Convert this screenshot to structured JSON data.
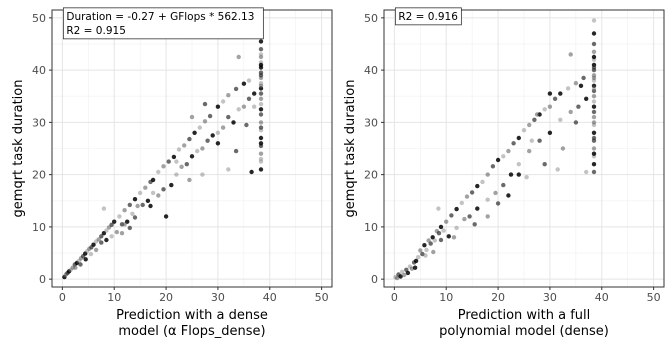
{
  "chart_data": [
    {
      "type": "scatter",
      "xlabel_lines": [
        "Prediction with a dense",
        "model (α Flops_dense)"
      ],
      "ylabel": "gemqrt task duration",
      "xlim": [
        -2,
        52
      ],
      "ylim": [
        -1.5,
        51.5
      ],
      "x_ticks": [
        0,
        10,
        20,
        30,
        40,
        50
      ],
      "y_ticks": [
        0,
        10,
        20,
        30,
        40,
        50
      ],
      "grid": true,
      "annotation_lines": [
        "Duration =  -0.27  + GFlops *  562.13",
        "R2 =  0.915"
      ],
      "points": [
        [
          0.4,
          0.4
        ],
        [
          0.6,
          0.8
        ],
        [
          0.8,
          1.0
        ],
        [
          1.0,
          1.2
        ],
        [
          1.3,
          1.5
        ],
        [
          1.6,
          1.8
        ],
        [
          2.0,
          2.2
        ],
        [
          2.4,
          2.8
        ],
        [
          2.8,
          3.1
        ],
        [
          3.2,
          3.5
        ],
        [
          3.6,
          4.0
        ],
        [
          4.0,
          4.4
        ],
        [
          4.4,
          4.9
        ],
        [
          4.8,
          5.4
        ],
        [
          5.2,
          5.8
        ],
        [
          5.6,
          6.1
        ],
        [
          6.0,
          6.6
        ],
        [
          6.5,
          7.2
        ],
        [
          7.0,
          7.6
        ],
        [
          7.5,
          8.2
        ],
        [
          8.0,
          8.8
        ],
        [
          8.5,
          9.3
        ],
        [
          9.0,
          9.9
        ],
        [
          9.5,
          10.4
        ],
        [
          10.0,
          11.0
        ],
        [
          11.0,
          12.0
        ],
        [
          12.0,
          13.2
        ],
        [
          13.0,
          14.2
        ],
        [
          14.0,
          15.3
        ],
        [
          15.0,
          16.5
        ],
        [
          16.0,
          17.5
        ],
        [
          17.0,
          18.6
        ],
        [
          17.5,
          19.0
        ],
        [
          18.5,
          20.5
        ],
        [
          19.5,
          21.6
        ],
        [
          20.5,
          22.5
        ],
        [
          21.5,
          23.4
        ],
        [
          22.5,
          24.8
        ],
        [
          23.5,
          25.6
        ],
        [
          24.5,
          26.8
        ],
        [
          25.5,
          28.0
        ],
        [
          26.5,
          29.0
        ],
        [
          27.5,
          30.2
        ],
        [
          28.5,
          31.2
        ],
        [
          30.0,
          33.0
        ],
        [
          31.0,
          34.0
        ],
        [
          32.0,
          35.2
        ],
        [
          33.5,
          36.4
        ],
        [
          35.0,
          37.4
        ],
        [
          36.0,
          38.0
        ],
        [
          2.5,
          2.2
        ],
        [
          3.5,
          2.8
        ],
        [
          4.5,
          3.8
        ],
        [
          5.5,
          4.8
        ],
        [
          6.5,
          5.6
        ],
        [
          7.5,
          7.0
        ],
        [
          8.5,
          7.5
        ],
        [
          9.5,
          8.2
        ],
        [
          10.5,
          9.0
        ],
        [
          11.5,
          10.5
        ],
        [
          12.5,
          11.0
        ],
        [
          13.5,
          12.5
        ],
        [
          14.5,
          14.0
        ],
        [
          15.5,
          14.2
        ],
        [
          16.5,
          15.0
        ],
        [
          17.5,
          16.5
        ],
        [
          18.5,
          16.0
        ],
        [
          19.5,
          17.2
        ],
        [
          21.0,
          18.0
        ],
        [
          22.0,
          20.0
        ],
        [
          23.0,
          21.5
        ],
        [
          24.0,
          22.0
        ],
        [
          25.0,
          23.5
        ],
        [
          26.0,
          24.5
        ],
        [
          27.0,
          25.0
        ],
        [
          28.0,
          26.5
        ],
        [
          29.0,
          27.5
        ],
        [
          30.0,
          28.0
        ],
        [
          31.0,
          29.0
        ],
        [
          32.0,
          31.0
        ],
        [
          33.0,
          30.0
        ],
        [
          34.0,
          32.5
        ],
        [
          35.0,
          33.0
        ],
        [
          36.0,
          34.5
        ],
        [
          37.0,
          35.5
        ],
        [
          8.0,
          13.5
        ],
        [
          12.0,
          10.5
        ],
        [
          14.0,
          11.8
        ],
        [
          20.0,
          12.0
        ],
        [
          22.0,
          22.5
        ],
        [
          25.0,
          31.0
        ],
        [
          27.5,
          33.5
        ],
        [
          30.0,
          26.0
        ],
        [
          32.0,
          21.0
        ],
        [
          34.0,
          42.5
        ],
        [
          35.5,
          29.5
        ],
        [
          36.5,
          20.5
        ],
        [
          37.0,
          33.0
        ],
        [
          11.5,
          8.8
        ],
        [
          13.0,
          9.8
        ],
        [
          17.0,
          14.0
        ],
        [
          27.0,
          20.0
        ],
        [
          24.5,
          19.0
        ],
        [
          33.5,
          24.5
        ],
        [
          38.3,
          21.0
        ],
        [
          38.3,
          22.5
        ],
        [
          38.3,
          24.0
        ],
        [
          38.3,
          25.5
        ],
        [
          38.3,
          27.0
        ],
        [
          38.3,
          28.5
        ],
        [
          38.3,
          30.0
        ],
        [
          38.3,
          31.5
        ],
        [
          38.3,
          32.5
        ],
        [
          38.3,
          33.5
        ],
        [
          38.3,
          34.5
        ],
        [
          38.3,
          35.5
        ],
        [
          38.3,
          36.5
        ],
        [
          38.3,
          37.5
        ],
        [
          38.3,
          38.5
        ],
        [
          38.3,
          39.5
        ],
        [
          38.3,
          40.5
        ],
        [
          38.3,
          41.5
        ],
        [
          38.3,
          42.5
        ],
        [
          38.3,
          44.0
        ],
        [
          38.3,
          45.5
        ],
        [
          38.3,
          47.0
        ],
        [
          38.3,
          49.0
        ],
        [
          38.3,
          29.0
        ],
        [
          38.3,
          26.0
        ],
        [
          38.3,
          23.0
        ],
        [
          38.3,
          37.0
        ],
        [
          38.3,
          39.0
        ],
        [
          38.3,
          41.0
        ],
        [
          38.3,
          43.0
        ]
      ]
    },
    {
      "type": "scatter",
      "xlabel_lines": [
        "Prediction with a full",
        "polynomial model (dense)"
      ],
      "ylabel": "gemqrt task duration",
      "xlim": [
        -2,
        52
      ],
      "ylim": [
        -1.5,
        51.5
      ],
      "x_ticks": [
        0,
        10,
        20,
        30,
        40,
        50
      ],
      "y_ticks": [
        0,
        10,
        20,
        30,
        40,
        50
      ],
      "grid": true,
      "annotation_lines": [
        "R2 =  0.916"
      ],
      "points": [
        [
          0.2,
          0.4
        ],
        [
          0.5,
          0.2
        ],
        [
          0.8,
          0.9
        ],
        [
          1.2,
          0.5
        ],
        [
          1.5,
          1.4
        ],
        [
          1.9,
          0.8
        ],
        [
          2.3,
          1.8
        ],
        [
          2.6,
          1.2
        ],
        [
          3.0,
          2.4
        ],
        [
          3.4,
          2.0
        ],
        [
          3.8,
          3.2
        ],
        [
          4.2,
          3.5
        ],
        [
          4.6,
          4.2
        ],
        [
          5.0,
          5.5
        ],
        [
          5.4,
          4.8
        ],
        [
          5.8,
          6.5
        ],
        [
          6.2,
          5.6
        ],
        [
          6.6,
          7.4
        ],
        [
          7.0,
          6.8
        ],
        [
          7.4,
          8.0
        ],
        [
          7.8,
          7.4
        ],
        [
          8.2,
          9.2
        ],
        [
          8.6,
          8.8
        ],
        [
          9.0,
          10.0
        ],
        [
          9.5,
          9.3
        ],
        [
          10.0,
          11.0
        ],
        [
          11.0,
          12.2
        ],
        [
          12.0,
          13.4
        ],
        [
          13.0,
          14.6
        ],
        [
          14.0,
          15.8
        ],
        [
          15.0,
          16.6
        ],
        [
          16.0,
          17.8
        ],
        [
          17.0,
          18.6
        ],
        [
          18.0,
          20.0
        ],
        [
          19.0,
          21.6
        ],
        [
          20.0,
          22.8
        ],
        [
          21.0,
          23.5
        ],
        [
          22.0,
          24.5
        ],
        [
          23.0,
          26.0
        ],
        [
          24.0,
          27.0
        ],
        [
          25.0,
          28.5
        ],
        [
          26.0,
          29.5
        ],
        [
          27.0,
          30.5
        ],
        [
          28.0,
          31.5
        ],
        [
          29.0,
          32.5
        ],
        [
          30.0,
          33.0
        ],
        [
          31.0,
          34.5
        ],
        [
          32.0,
          35.5
        ],
        [
          33.5,
          36.5
        ],
        [
          35.0,
          37.5
        ],
        [
          36.5,
          38.5
        ],
        [
          4.0,
          2.2
        ],
        [
          6.0,
          4.5
        ],
        [
          7.5,
          5.2
        ],
        [
          9.0,
          7.5
        ],
        [
          10.5,
          8.2
        ],
        [
          12.0,
          9.8
        ],
        [
          13.5,
          11.5
        ],
        [
          14.5,
          12.0
        ],
        [
          16.0,
          13.5
        ],
        [
          18.0,
          15.2
        ],
        [
          19.5,
          16.5
        ],
        [
          21.0,
          18.0
        ],
        [
          22.5,
          20.0
        ],
        [
          24.0,
          22.0
        ],
        [
          26.0,
          24.5
        ],
        [
          28.0,
          26.5
        ],
        [
          30.0,
          28.0
        ],
        [
          32.0,
          30.5
        ],
        [
          34.0,
          32.0
        ],
        [
          35.5,
          33.0
        ],
        [
          37.0,
          34.5
        ],
        [
          8.5,
          13.5
        ],
        [
          18.0,
          12.0
        ],
        [
          20.0,
          14.5
        ],
        [
          24.0,
          20.0
        ],
        [
          26.5,
          26.5
        ],
        [
          27.5,
          31.5
        ],
        [
          29.0,
          22.0
        ],
        [
          30.0,
          35.5
        ],
        [
          31.5,
          21.0
        ],
        [
          34.0,
          43.0
        ],
        [
          35.0,
          30.0
        ],
        [
          36.0,
          37.0
        ],
        [
          37.0,
          20.5
        ],
        [
          11.5,
          8.0
        ],
        [
          15.5,
          10.5
        ],
        [
          22.0,
          16.0
        ],
        [
          25.5,
          19.5
        ],
        [
          32.5,
          25.0
        ],
        [
          38.5,
          20.5
        ],
        [
          38.5,
          22.0
        ],
        [
          38.5,
          23.5
        ],
        [
          38.5,
          25.0
        ],
        [
          38.5,
          26.5
        ],
        [
          38.5,
          28.0
        ],
        [
          38.5,
          29.5
        ],
        [
          38.5,
          31.0
        ],
        [
          38.5,
          32.0
        ],
        [
          38.5,
          33.0
        ],
        [
          38.5,
          34.0
        ],
        [
          38.5,
          35.0
        ],
        [
          38.5,
          36.0
        ],
        [
          38.5,
          37.0
        ],
        [
          38.5,
          38.0
        ],
        [
          38.5,
          39.0
        ],
        [
          38.5,
          40.0
        ],
        [
          38.5,
          41.0
        ],
        [
          38.5,
          42.0
        ],
        [
          38.5,
          43.5
        ],
        [
          38.5,
          45.0
        ],
        [
          38.5,
          47.0
        ],
        [
          38.5,
          49.5
        ],
        [
          38.5,
          30.0
        ],
        [
          38.5,
          27.0
        ],
        [
          38.5,
          24.0
        ],
        [
          38.5,
          36.5
        ],
        [
          38.5,
          38.5
        ],
        [
          38.5,
          40.5
        ],
        [
          38.5,
          42.5
        ]
      ]
    }
  ]
}
